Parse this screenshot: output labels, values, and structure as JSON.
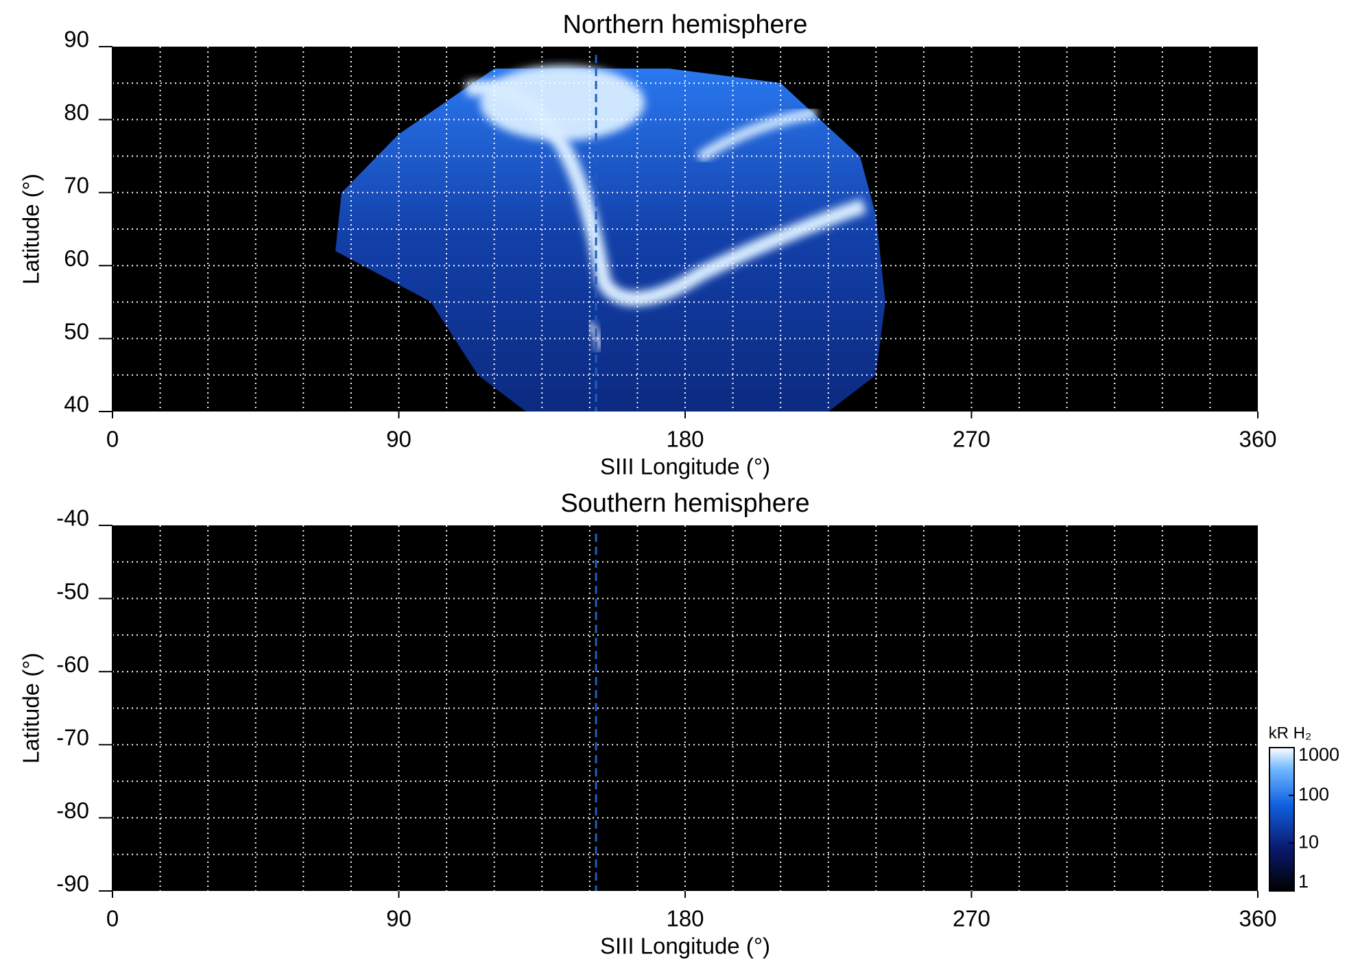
{
  "chart_data": [
    {
      "type": "heatmap",
      "title": "Northern hemisphere",
      "xlabel": "SIII Longitude (°)",
      "ylabel": "Latitude (°)",
      "xlim": [
        0,
        360
      ],
      "xticks": [
        0,
        90,
        180,
        270,
        360
      ],
      "ylim": [
        40,
        90
      ],
      "yticks": [
        40,
        50,
        60,
        70,
        80,
        90
      ],
      "xgrid": [
        15,
        30,
        45,
        60,
        75,
        90,
        105,
        120,
        135,
        150,
        165,
        180,
        195,
        210,
        225,
        240,
        255,
        270,
        285,
        300,
        315,
        330,
        345
      ],
      "ygrid": [
        45,
        50,
        55,
        60,
        65,
        70,
        75,
        80,
        85
      ],
      "reference_line": {
        "value": 152,
        "color": "#1f5fbf"
      }
    },
    {
      "type": "heatmap",
      "title": "Southern hemisphere",
      "xlabel": "SIII Longitude (°)",
      "ylabel": "Latitude (°)",
      "xlim": [
        0,
        360
      ],
      "xticks": [
        0,
        90,
        180,
        270,
        360
      ],
      "ylim": [
        -90,
        -40
      ],
      "yticks": [
        -90,
        -80,
        -70,
        -60,
        -50,
        -40
      ],
      "xgrid": [
        15,
        30,
        45,
        60,
        75,
        90,
        105,
        120,
        135,
        150,
        165,
        180,
        195,
        210,
        225,
        240,
        255,
        270,
        285,
        300,
        315,
        330,
        345
      ],
      "ygrid": [
        -85,
        -80,
        -75,
        -70,
        -65,
        -60,
        -55,
        -50,
        -45
      ],
      "reference_line": {
        "value": 152,
        "color": "#1f5fbf"
      },
      "colorbar": {
        "label": "kR H₂",
        "lim": [
          1,
          1000
        ],
        "ticks": [
          1,
          10,
          100,
          1000
        ],
        "log": true
      }
    }
  ]
}
